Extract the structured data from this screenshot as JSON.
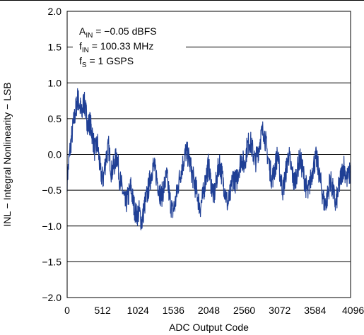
{
  "chart_data": {
    "type": "line",
    "xlabel": "ADC Output Code",
    "ylabel": "INL − Integral Nonlinearity − LSB",
    "xlim": [
      0,
      4096
    ],
    "ylim": [
      -2.0,
      2.0
    ],
    "grid": "horizontal",
    "x_ticks": [
      0,
      512,
      1024,
      1536,
      2048,
      2560,
      3072,
      3584,
      4096
    ],
    "x_tick_labels": [
      "0",
      "512",
      "1024",
      "1536",
      "2048",
      "2560",
      "3072",
      "3584",
      "4096"
    ],
    "y_ticks": [
      2.0,
      1.5,
      1.0,
      0.5,
      0.0,
      -0.5,
      -1.0,
      -1.5,
      -2.0
    ],
    "y_tick_labels": [
      "2.0",
      "1.5",
      "1.0",
      "0.5",
      "0.0",
      "−0.5",
      "−1.0",
      "−1.5",
      "−2.0"
    ],
    "annotations": [
      {
        "main": "A",
        "sub": "IN",
        "rest": " = −0.05 dBFS"
      },
      {
        "main": "f",
        "sub": "IN",
        "rest": " = 100.33 MHz"
      },
      {
        "main": "f",
        "sub": "S",
        "rest": " = 1 GSPS"
      }
    ],
    "series": [
      {
        "color": "#1f3f95",
        "x": [
          0,
          40,
          80,
          120,
          150,
          180,
          210,
          240,
          270,
          300,
          330,
          360,
          400,
          440,
          480,
          520,
          560,
          600,
          640,
          680,
          720,
          760,
          800,
          840,
          880,
          920,
          960,
          1000,
          1040,
          1080,
          1120,
          1160,
          1200,
          1240,
          1280,
          1320,
          1360,
          1400,
          1440,
          1480,
          1520,
          1560,
          1600,
          1640,
          1680,
          1720,
          1760,
          1800,
          1840,
          1880,
          1920,
          1960,
          2000,
          2040,
          2080,
          2120,
          2160,
          2200,
          2240,
          2280,
          2320,
          2360,
          2400,
          2440,
          2480,
          2520,
          2560,
          2600,
          2640,
          2680,
          2720,
          2760,
          2800,
          2840,
          2880,
          2920,
          2960,
          3000,
          3040,
          3080,
          3120,
          3160,
          3200,
          3240,
          3280,
          3320,
          3360,
          3400,
          3440,
          3480,
          3520,
          3560,
          3600,
          3640,
          3680,
          3720,
          3760,
          3800,
          3840,
          3880,
          3920,
          3960,
          4000,
          4040,
          4096
        ],
        "y": [
          -0.35,
          0.05,
          0.35,
          0.6,
          0.78,
          0.7,
          0.55,
          0.75,
          0.6,
          0.4,
          0.45,
          0.3,
          0.05,
          0.15,
          -0.25,
          -0.35,
          -0.05,
          0.1,
          -0.25,
          -0.15,
          0.0,
          -0.35,
          -0.5,
          -0.7,
          -0.6,
          -0.45,
          -0.7,
          -0.85,
          -0.8,
          -0.95,
          -0.7,
          -0.55,
          -0.35,
          -0.15,
          -0.25,
          -0.45,
          -0.6,
          -0.45,
          -0.3,
          -0.6,
          -0.8,
          -0.7,
          -0.45,
          -0.25,
          -0.1,
          0.05,
          -0.05,
          -0.25,
          -0.4,
          -0.55,
          -0.75,
          -0.6,
          -0.35,
          -0.15,
          -0.4,
          -0.6,
          -0.35,
          -0.1,
          -0.3,
          -0.5,
          -0.7,
          -0.55,
          -0.3,
          -0.4,
          -0.2,
          -0.05,
          -0.15,
          0.1,
          0.2,
          0.05,
          -0.1,
          0.05,
          0.25,
          0.35,
          0.1,
          -0.15,
          -0.35,
          -0.2,
          0.0,
          -0.3,
          -0.5,
          -0.25,
          0.0,
          -0.2,
          -0.4,
          -0.25,
          -0.05,
          -0.2,
          -0.4,
          -0.55,
          -0.35,
          -0.15,
          -0.05,
          -0.25,
          -0.5,
          -0.7,
          -0.6,
          -0.35,
          -0.5,
          -0.7,
          -0.5,
          -0.3,
          -0.15,
          -0.35,
          -0.25
        ]
      }
    ]
  }
}
